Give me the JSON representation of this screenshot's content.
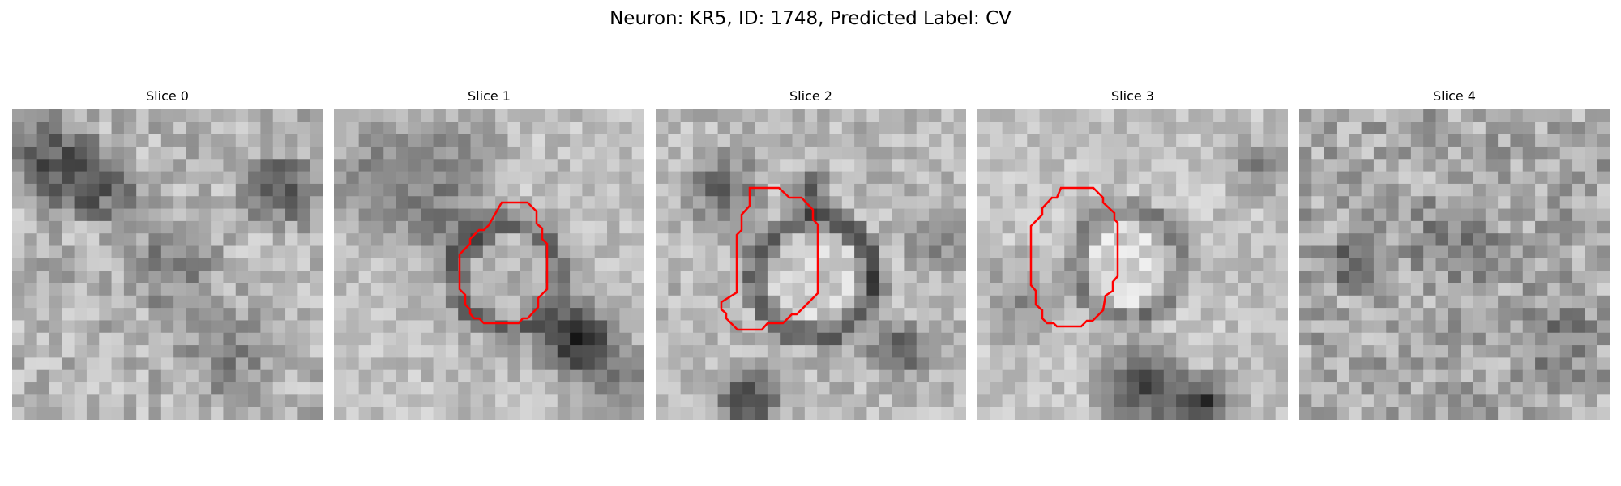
{
  "figure": {
    "title": "Neuron: KR5, ID: 1748, Predicted Label: CV",
    "roi_color": "#ff0000",
    "colormap": "gray",
    "panels": [
      {
        "title": "Slice 0",
        "has_roi": false
      },
      {
        "title": "Slice 1",
        "has_roi": true
      },
      {
        "title": "Slice 2",
        "has_roi": true
      },
      {
        "title": "Slice 3",
        "has_roi": true
      },
      {
        "title": "Slice 4",
        "has_roi": false
      }
    ]
  }
}
